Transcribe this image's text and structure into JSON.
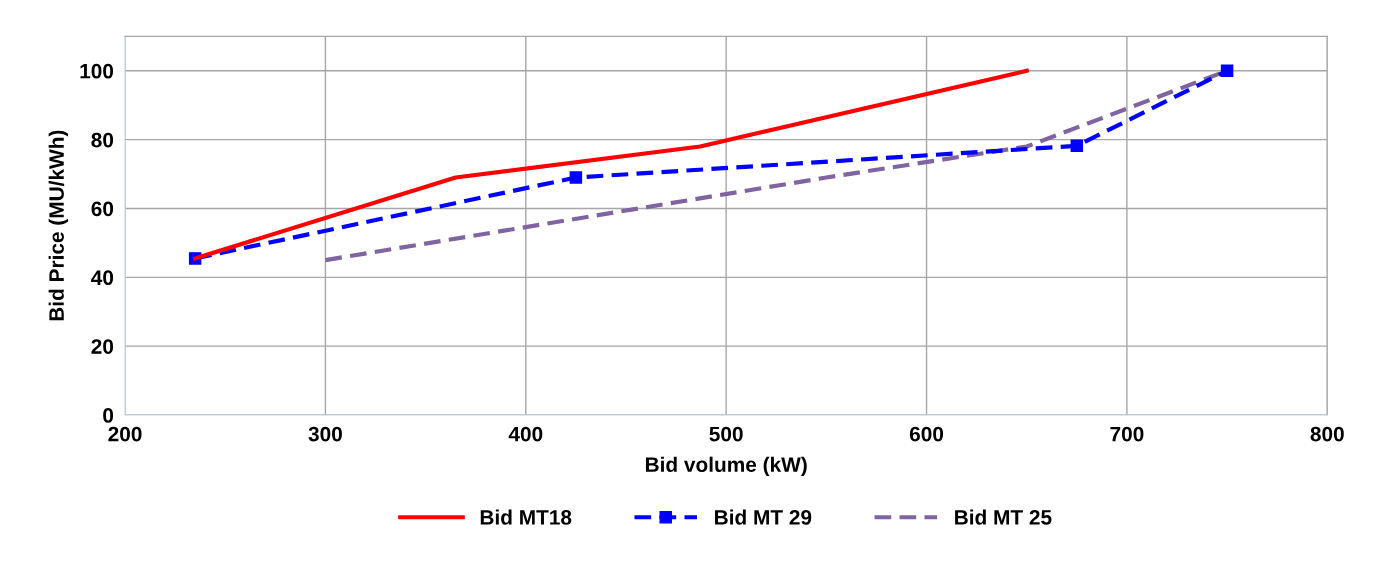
{
  "chart_data": {
    "type": "line",
    "xlabel": "Bid volume (kW)",
    "ylabel": "Bid Price (MU/kWh)",
    "xlim": [
      200,
      800
    ],
    "xticks": [
      200,
      300,
      400,
      500,
      600,
      700,
      800
    ],
    "ylim": [
      0,
      110
    ],
    "yticks": [
      0,
      20,
      40,
      60,
      80,
      100
    ],
    "grid": true,
    "legend": "bottom",
    "series": [
      {
        "name": "Bid MT18",
        "color": "#ff0000",
        "x": [
          235,
          365,
          487,
          650
        ],
        "values": [
          45.5,
          69,
          78,
          100
        ],
        "line_style": "solid",
        "marker": "none"
      },
      {
        "name": "Bid MT 29",
        "color": "#0000ff",
        "x": [
          235,
          425,
          675,
          750
        ],
        "values": [
          45.5,
          69,
          78.2,
          100
        ],
        "line_style": "dashed",
        "marker": "square"
      },
      {
        "name": "Bid MT 25",
        "color": "#8064a2",
        "x": [
          300,
          550,
          650,
          750
        ],
        "values": [
          45,
          69,
          78,
          100
        ],
        "line_style": "dashed",
        "marker": "none"
      }
    ]
  }
}
